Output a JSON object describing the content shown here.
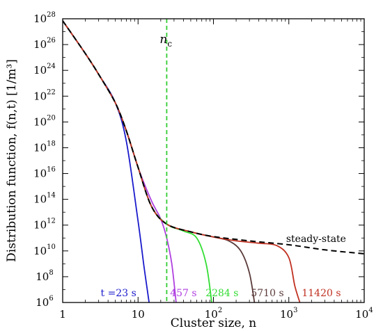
{
  "chart_data": {
    "type": "line",
    "xscale": "log",
    "yscale": "log",
    "xlim": [
      1,
      10000
    ],
    "ylim": [
      1000000.0,
      1e+28
    ],
    "xlabel": "Cluster size, n",
    "ylabel": "Distribution function, f(n,t) [1/m³]",
    "x_ticks": [
      1,
      10,
      100,
      1000,
      10000
    ],
    "x_tick_labels": [
      {
        "base": "1",
        "exp": ""
      },
      {
        "base": "10",
        "exp": ""
      },
      {
        "base": "10",
        "exp": "2"
      },
      {
        "base": "10",
        "exp": "3"
      },
      {
        "base": "10",
        "exp": "4"
      }
    ],
    "y_ticks": [
      1000000.0,
      100000000.0,
      10000000000.0,
      1000000000000.0,
      100000000000000.0,
      1e+16,
      1e+18,
      1e+20,
      1e+22,
      1e+24,
      1e+26,
      1e+28
    ],
    "y_tick_labels": [
      {
        "base": "10",
        "exp": "6"
      },
      {
        "base": "10",
        "exp": "8"
      },
      {
        "base": "10",
        "exp": "10"
      },
      {
        "base": "10",
        "exp": "12"
      },
      {
        "base": "10",
        "exp": "14"
      },
      {
        "base": "10",
        "exp": "16"
      },
      {
        "base": "10",
        "exp": "18"
      },
      {
        "base": "10",
        "exp": "20"
      },
      {
        "base": "10",
        "exp": "22"
      },
      {
        "base": "10",
        "exp": "24"
      },
      {
        "base": "10",
        "exp": "26"
      },
      {
        "base": "10",
        "exp": "28"
      }
    ],
    "critical_size": {
      "label_base": "n",
      "label_sub": "c",
      "x": 24,
      "color": "#33cc33"
    },
    "series": [
      {
        "name": "t =23 s",
        "color": "#1a1acc",
        "label_x": 5.5,
        "label_y": 3000000.0,
        "x": [
          1,
          2,
          3,
          5,
          7,
          10,
          12,
          14
        ],
        "y": [
          7e+27,
          2e+25,
          5e+23,
          3e+21,
          3e+18,
          2000000000000.0,
          600000000.0,
          1000000.0
        ]
      },
      {
        "name": "457 s",
        "color": "#b040e0",
        "label_x": 40,
        "label_y": 3000000.0,
        "x": [
          1,
          2,
          3,
          5,
          7,
          10,
          15,
          20,
          24,
          28,
          32
        ],
        "y": [
          7e+27,
          2e+25,
          5e+23,
          3e+21,
          2e+19,
          3e+16,
          80000000000000.0,
          3000000000000.0,
          100000000000.0,
          1000000000.0,
          1000000.0
        ]
      },
      {
        "name": "2284 s",
        "color": "#33dd33",
        "label_x": 130,
        "label_y": 3000000.0,
        "x": [
          1,
          2,
          3,
          5,
          7,
          10,
          15,
          24,
          40,
          60,
          80,
          95
        ],
        "y": [
          7e+27,
          2e+25,
          5e+23,
          3e+21,
          2e+19,
          3e+16,
          30000000000000.0,
          1200000000000.0,
          350000000000.0,
          100000000000.0,
          1000000000.0,
          1000000.0
        ]
      },
      {
        "name": "5710 s",
        "color": "#5a3a3a",
        "label_x": 520,
        "label_y": 3000000.0,
        "x": [
          1,
          2,
          3,
          5,
          7,
          10,
          15,
          24,
          50,
          100,
          160,
          230,
          300,
          350
        ],
        "y": [
          7e+27,
          2e+25,
          5e+23,
          3e+21,
          2e+19,
          3e+16,
          30000000000000.0,
          1200000000000.0,
          300000000000.0,
          120000000000.0,
          60000000000.0,
          10000000000.0,
          200000000.0,
          1000000.0
        ]
      },
      {
        "name": "11420 s",
        "color": "#c03020",
        "label_x": 2700,
        "label_y": 3000000.0,
        "x": [
          1,
          2,
          3,
          5,
          7,
          10,
          15,
          24,
          50,
          100,
          200,
          400,
          700,
          1000,
          1200,
          1400
        ],
        "y": [
          7e+27,
          2e+25,
          5e+23,
          3e+21,
          2e+19,
          3e+16,
          30000000000000.0,
          1200000000000.0,
          300000000000.0,
          120000000000.0,
          60000000000.0,
          40000000000.0,
          25000000000.0,
          3000000000.0,
          20000000.0,
          1000000.0
        ]
      },
      {
        "name": "steady-state",
        "color": "#000000",
        "dashed": true,
        "label_x": 2300,
        "label_y": 50000000000.0,
        "x": [
          1,
          2,
          3,
          5,
          7,
          10,
          15,
          24,
          50,
          100,
          300,
          1000,
          3000,
          10000
        ],
        "y": [
          7e+27,
          2e+25,
          5e+23,
          3e+21,
          2e+19,
          3e+16,
          30000000000000.0,
          1200000000000.0,
          300000000000.0,
          130000000000.0,
          60000000000.0,
          30000000000.0,
          12000000000.0,
          6000000000.0
        ]
      }
    ]
  }
}
